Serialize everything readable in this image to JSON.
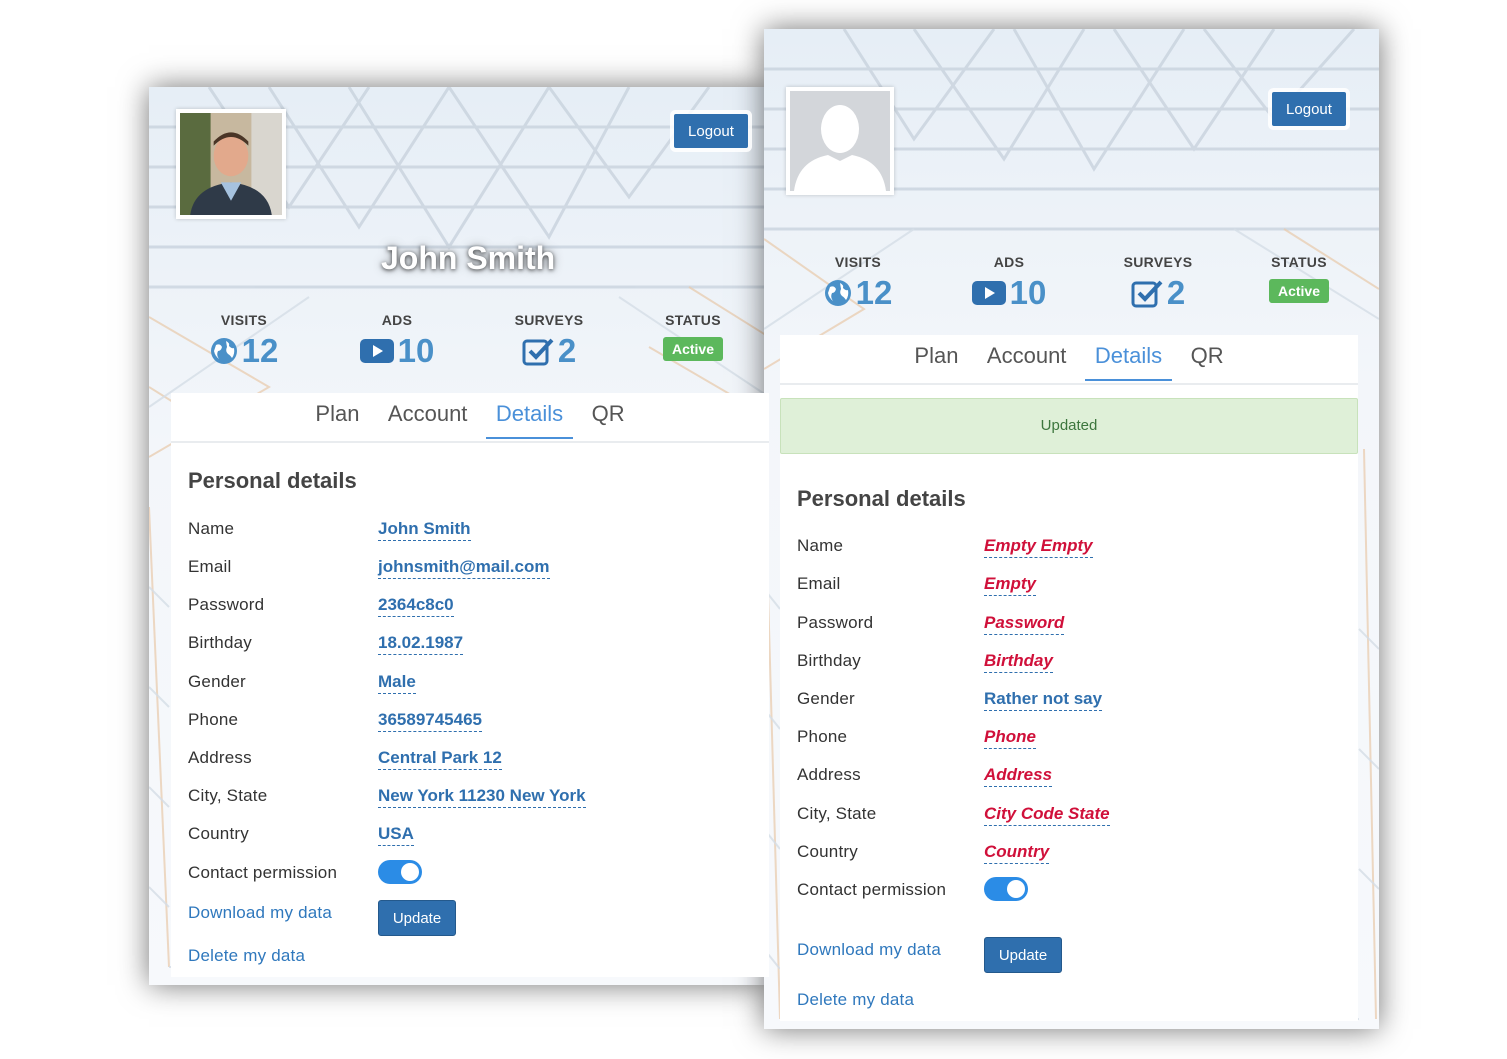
{
  "left": {
    "user_name": "John Smith",
    "logout_label": "Logout",
    "stats": {
      "visits_label": "VISITS",
      "visits_value": "12",
      "ads_label": "ADS",
      "ads_value": "10",
      "surveys_label": "SURVEYS",
      "surveys_value": "2",
      "status_label": "STATUS",
      "status_value": "Active"
    },
    "tabs": [
      "Plan",
      "Account",
      "Details",
      "QR"
    ],
    "active_tab": "Details",
    "section_title": "Personal details",
    "fields": [
      {
        "label": "Name",
        "value": "John Smith"
      },
      {
        "label": "Email",
        "value": "johnsmith@mail.com"
      },
      {
        "label": "Password",
        "value": "2364c8c0"
      },
      {
        "label": "Birthday",
        "value": "18.02.1987"
      },
      {
        "label": "Gender",
        "value": "Male"
      },
      {
        "label": "Phone",
        "value": "36589745465"
      },
      {
        "label": "Address",
        "value": "Central Park 12"
      },
      {
        "label": "City, State",
        "value": "New York 11230 New York"
      },
      {
        "label": "Country",
        "value": "USA"
      }
    ],
    "contact_permission_label": "Contact permission",
    "download_label": "Download my data",
    "update_label": "Update",
    "delete_label": "Delete my data"
  },
  "right": {
    "logout_label": "Logout",
    "stats": {
      "visits_label": "VISITS",
      "visits_value": "12",
      "ads_label": "ADS",
      "ads_value": "10",
      "surveys_label": "SURVEYS",
      "surveys_value": "2",
      "status_label": "STATUS",
      "status_value": "Active"
    },
    "tabs": [
      "Plan",
      "Account",
      "Details",
      "QR"
    ],
    "active_tab": "Details",
    "alert_text": "Updated",
    "section_title": "Personal details",
    "fields": [
      {
        "label": "Name",
        "value": "Empty Empty"
      },
      {
        "label": "Email",
        "value": "Empty"
      },
      {
        "label": "Password",
        "value": "Password"
      },
      {
        "label": "Birthday",
        "value": "Birthday"
      },
      {
        "label": "Gender",
        "value": "Rather not say"
      },
      {
        "label": "Phone",
        "value": "Phone"
      },
      {
        "label": "Address",
        "value": "Address"
      },
      {
        "label": "City, State",
        "value": "City Code State"
      },
      {
        "label": "Country",
        "value": "Country"
      }
    ],
    "contact_permission_label": "Contact permission",
    "download_label": "Download my data",
    "update_label": "Update",
    "delete_label": "Delete my data"
  },
  "colors": {
    "primary_button": "#2f6fae",
    "link": "#2f78bd",
    "active_tab": "#4a90d9",
    "stat_value": "#4a90c8",
    "status_badge": "#5cb85c",
    "empty_value": "#d0103a",
    "toggle_on": "#2b8ce6",
    "alert_bg": "#dff0d8"
  },
  "icons": {
    "visits": "globe-icon",
    "ads": "play-icon",
    "surveys": "check-square-icon",
    "placeholder_avatar": "user-silhouette-icon"
  }
}
